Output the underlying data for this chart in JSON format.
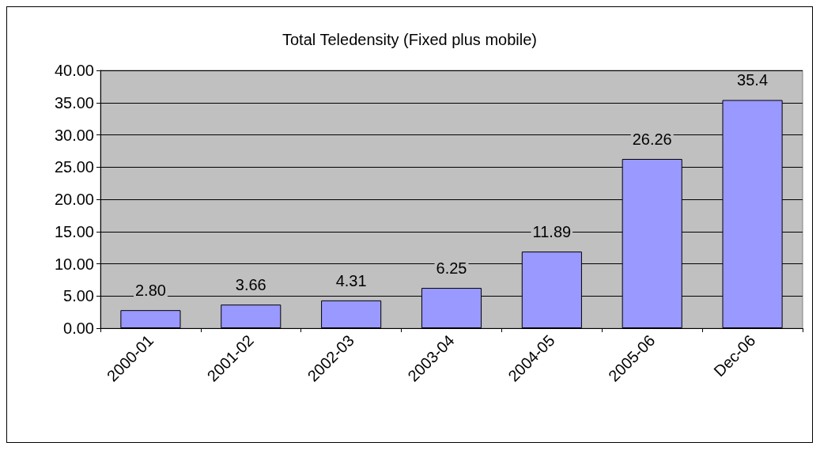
{
  "chart_data": {
    "type": "bar",
    "title": "Total Teledensity (Fixed plus mobile)",
    "categories": [
      "2000-01",
      "2001-02",
      "2002-03",
      "2003-04",
      "2004-05",
      "2005-06",
      "Dec-06"
    ],
    "values": [
      2.8,
      3.66,
      4.31,
      6.25,
      11.89,
      26.26,
      35.4
    ],
    "value_labels": [
      "2.80",
      "3.66",
      "4.31",
      "6.25",
      "11.89",
      "26.26",
      "35.4"
    ],
    "color": "#9999ff",
    "ylim": [
      0,
      40
    ],
    "yticks": [
      {
        "value": 0,
        "label": "0.00"
      },
      {
        "value": 5,
        "label": "5.00"
      },
      {
        "value": 10,
        "label": "10.00"
      },
      {
        "value": 15,
        "label": "15.00"
      },
      {
        "value": 20,
        "label": "20.00"
      },
      {
        "value": 25,
        "label": "25.00"
      },
      {
        "value": 30,
        "label": "30.00"
      },
      {
        "value": 35,
        "label": "35.00"
      },
      {
        "value": 40,
        "label": "40.00"
      }
    ],
    "grid": "y"
  }
}
